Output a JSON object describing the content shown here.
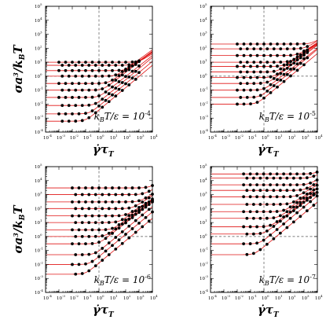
{
  "chart_data": [
    {
      "type": "scatter",
      "panel": "top-left",
      "annotation": {
        "base": "k",
        "sub": "B",
        "mid": "T/ε = 10",
        "exp": "-4"
      },
      "xlabel": "γ̇τ_T",
      "ylabel": "σa³/k_BT",
      "x_scale": "log",
      "y_scale": "log",
      "xlim": [
        0.0001,
        10000
      ],
      "ylim": [
        0.0001,
        100000
      ],
      "ref_lines": {
        "x": 1,
        "y": 1
      },
      "curves": [
        {
          "plateau": 10,
          "xc": 1000,
          "slope": 0.6
        },
        {
          "plateau": 6,
          "xc": 300,
          "slope": 0.6
        },
        {
          "plateau": 2.5,
          "xc": 100,
          "slope": 0.65
        },
        {
          "plateau": 1,
          "xc": 20,
          "slope": 0.7
        },
        {
          "plateau": 0.3,
          "xc": 5,
          "slope": 0.7
        },
        {
          "plateau": 0.1,
          "xc": 2,
          "slope": 0.75
        },
        {
          "plateau": 0.03,
          "xc": 1,
          "slope": 0.75
        },
        {
          "plateau": 0.008,
          "xc": 0.5,
          "slope": 0.8
        },
        {
          "plateau": 0.002,
          "xc": 0.2,
          "slope": 0.8
        },
        {
          "plateau": 0.0006,
          "xc": 0.1,
          "slope": 0.8
        }
      ],
      "point_x_range": [
        0.001,
        1000
      ],
      "point_step_decades": 0.5
    },
    {
      "type": "scatter",
      "panel": "top-right",
      "annotation": {
        "base": "k",
        "sub": "B",
        "mid": "T/ε = 10",
        "exp": "-5"
      },
      "xlabel": "γ̇τ_T",
      "ylabel": "",
      "x_scale": "log",
      "y_scale": "log",
      "xlim": [
        0.0001,
        10000
      ],
      "ylim": [
        0.0001,
        100000
      ],
      "ref_lines": {
        "x": 1,
        "y": 1
      },
      "curves": [
        {
          "plateau": 200,
          "xc": 3000,
          "slope": 0.5
        },
        {
          "plateau": 90,
          "xc": 1000,
          "slope": 0.55
        },
        {
          "plateau": 30,
          "xc": 300,
          "slope": 0.6
        },
        {
          "plateau": 10,
          "xc": 100,
          "slope": 0.65
        },
        {
          "plateau": 5,
          "xc": 30,
          "slope": 0.65
        },
        {
          "plateau": 2,
          "xc": 10,
          "slope": 0.7
        },
        {
          "plateau": 0.8,
          "xc": 5,
          "slope": 0.7
        },
        {
          "plateau": 0.3,
          "xc": 2,
          "slope": 0.75
        },
        {
          "plateau": 0.1,
          "xc": 1,
          "slope": 0.75
        },
        {
          "plateau": 0.03,
          "xc": 0.5,
          "slope": 0.8
        },
        {
          "plateau": 0.01,
          "xc": 0.3,
          "slope": 0.8
        }
      ],
      "point_x_range": [
        0.01,
        3000
      ],
      "point_step_decades": 0.5
    },
    {
      "type": "scatter",
      "panel": "bottom-left",
      "annotation": {
        "base": "k",
        "sub": "B",
        "mid": "T/ε = 10",
        "exp": "-6"
      },
      "xlabel": "γ̇τ_T",
      "ylabel": "σa³/k_BT",
      "x_scale": "log",
      "y_scale": "log",
      "xlim": [
        0.0001,
        10000
      ],
      "ylim": [
        0.0001,
        100000
      ],
      "ref_lines": {
        "x": 1,
        "y": 1
      },
      "curves": [
        {
          "plateau": 3000,
          "xc": 5000,
          "slope": 0.5
        },
        {
          "plateau": 1000,
          "xc": 2000,
          "slope": 0.5
        },
        {
          "plateau": 300,
          "xc": 1000,
          "slope": 0.55
        },
        {
          "plateau": 100,
          "xc": 300,
          "slope": 0.6
        },
        {
          "plateau": 30,
          "xc": 100,
          "slope": 0.6
        },
        {
          "plateau": 10,
          "xc": 30,
          "slope": 0.65
        },
        {
          "plateau": 3,
          "xc": 10,
          "slope": 0.7
        },
        {
          "plateau": 1,
          "xc": 3,
          "slope": 0.7
        },
        {
          "plateau": 0.3,
          "xc": 1,
          "slope": 0.75
        },
        {
          "plateau": 0.05,
          "xc": 0.5,
          "slope": 0.8
        },
        {
          "plateau": 0.01,
          "xc": 0.2,
          "slope": 0.8
        },
        {
          "plateau": 0.002,
          "xc": 0.1,
          "slope": 0.8
        }
      ],
      "point_x_range": [
        0.01,
        10000
      ],
      "point_step_decades": 0.5
    },
    {
      "type": "scatter",
      "panel": "bottom-right",
      "annotation": {
        "base": "k",
        "sub": "B",
        "mid": "T/ε = 10",
        "exp": "-7"
      },
      "xlabel": "γ̇τ_T",
      "ylabel": "",
      "x_scale": "log",
      "y_scale": "log",
      "xlim": [
        0.0001,
        10000
      ],
      "ylim": [
        0.0001,
        100000
      ],
      "ref_lines": {
        "x": 1,
        "y": 1
      },
      "curves": [
        {
          "plateau": 30000,
          "xc": 5000,
          "slope": 0.4
        },
        {
          "plateau": 15000,
          "xc": 3000,
          "slope": 0.45
        },
        {
          "plateau": 5000,
          "xc": 2000,
          "slope": 0.5
        },
        {
          "plateau": 2000,
          "xc": 1000,
          "slope": 0.55
        },
        {
          "plateau": 700,
          "xc": 300,
          "slope": 0.55
        },
        {
          "plateau": 200,
          "xc": 100,
          "slope": 0.6
        },
        {
          "plateau": 60,
          "xc": 30,
          "slope": 0.65
        },
        {
          "plateau": 20,
          "xc": 10,
          "slope": 0.65
        },
        {
          "plateau": 5,
          "xc": 3,
          "slope": 0.7
        },
        {
          "plateau": 1.5,
          "xc": 1,
          "slope": 0.75
        },
        {
          "plateau": 0.3,
          "xc": 0.5,
          "slope": 0.8
        },
        {
          "plateau": 0.05,
          "xc": 0.2,
          "slope": 0.8
        }
      ],
      "point_x_range": [
        0.03,
        10000
      ],
      "point_step_decades": 0.5
    }
  ],
  "colors": {
    "curve": "#e01616",
    "points": "#000000",
    "ref_line": "#555555"
  }
}
